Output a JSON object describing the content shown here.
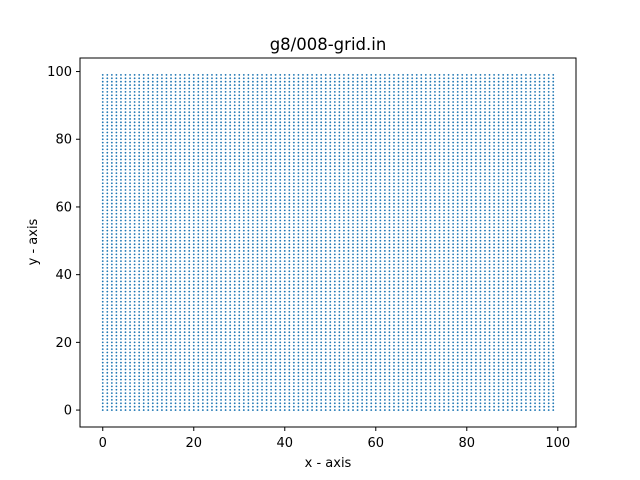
{
  "chart_data": {
    "type": "scatter",
    "title": "g8/008-grid.in",
    "xlabel": "x - axis",
    "ylabel": "y - axis",
    "xlim": [
      -5,
      104
    ],
    "ylim": [
      -5,
      104
    ],
    "xticks": [
      0,
      20,
      40,
      60,
      80,
      100
    ],
    "yticks": [
      0,
      20,
      40,
      60,
      80,
      100
    ],
    "grid": false,
    "series": [
      {
        "color": "#1f77b4",
        "x_start": 0,
        "x_end": 99,
        "x_step": 1,
        "y_start": 0,
        "y_end": 99,
        "y_step": 1
      }
    ]
  }
}
